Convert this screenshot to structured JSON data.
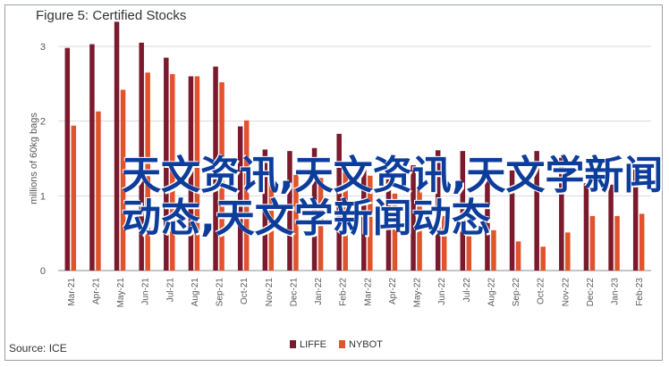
{
  "title": "Figure 5: Certified Stocks",
  "source": "Source: ICE",
  "overlay": {
    "line1": "天文资讯,天文资讯,天文学新闻",
    "line2": "动态,天文学新闻动态"
  },
  "colors": {
    "LIFFE": "#7b1a2c",
    "NYBOT": "#e0532c",
    "grid": "#d9d9d9",
    "axis_text": "#595959",
    "overlay_text": "#0d3d9a"
  },
  "chart_data": {
    "type": "bar",
    "title": "Figure 5: Certified Stocks",
    "ylabel": "millions of 60kg bags",
    "ylim": [
      0,
      3
    ],
    "yticks": [
      0,
      1,
      2,
      3
    ],
    "grid": true,
    "legend_position": "bottom",
    "categories": [
      "Mar-21",
      "Apr-21",
      "May-21",
      "Jun-21",
      "Jul-21",
      "Aug-21",
      "Sep-21",
      "Oct-21",
      "Nov-21",
      "Dec-21",
      "Jan-22",
      "Feb-22",
      "Mar-22",
      "Apr-22",
      "May-22",
      "Jun-22",
      "Jul-22",
      "Aug-22",
      "Sep-22",
      "Oct-22",
      "Nov-22",
      "Dec-22",
      "Jan-23",
      "Feb-23"
    ],
    "series": [
      {
        "name": "LIFFE",
        "values": [
          2.98,
          3.03,
          3.33,
          3.05,
          2.85,
          2.6,
          2.73,
          1.93,
          1.62,
          1.6,
          1.64,
          1.83,
          1.36,
          1.23,
          1.41,
          1.61,
          1.6,
          1.29,
          1.34,
          1.6,
          1.51,
          1.17,
          1.15,
          1.35
        ]
      },
      {
        "name": "NYBOT",
        "values": [
          1.94,
          2.13,
          2.42,
          2.65,
          2.63,
          2.6,
          2.52,
          2.01,
          1.31,
          1.28,
          1.24,
          1.32,
          1.27,
          1.03,
          1.15,
          0.73,
          0.53,
          0.54,
          0.39,
          0.32,
          0.51,
          0.73,
          0.73,
          0.76
        ]
      }
    ]
  }
}
